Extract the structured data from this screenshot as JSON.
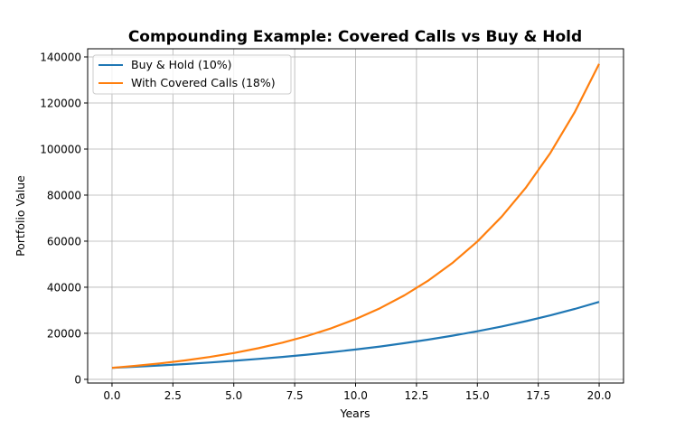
{
  "chart_data": {
    "type": "line",
    "title": "Compounding Example: Covered Calls vs Buy & Hold",
    "xlabel": "Years",
    "ylabel": "Portfolio Value",
    "xlim": [
      -1,
      21
    ],
    "ylim": [
      -1597,
      143535
    ],
    "grid": true,
    "legend_position": "top-left",
    "x_ticks": [
      "0.0",
      "2.5",
      "5.0",
      "7.5",
      "10.0",
      "12.5",
      "15.0",
      "17.5",
      "20.0"
    ],
    "x_tick_values": [
      0,
      2.5,
      5,
      7.5,
      10,
      12.5,
      15,
      17.5,
      20
    ],
    "y_ticks": [
      "0",
      "20000",
      "40000",
      "60000",
      "80000",
      "100000",
      "120000",
      "140000"
    ],
    "y_tick_values": [
      0,
      20000,
      40000,
      60000,
      80000,
      100000,
      120000,
      140000
    ],
    "x": [
      0,
      1,
      2,
      3,
      4,
      5,
      6,
      7,
      8,
      9,
      10,
      11,
      12,
      13,
      14,
      15,
      16,
      17,
      18,
      19,
      20
    ],
    "series": [
      {
        "name": "Buy & Hold (10%)",
        "color": "#1f77b4",
        "values": [
          5000,
          5500,
          6050,
          6655,
          7320.5,
          8052.55,
          8857.81,
          9743.59,
          10717.94,
          11789.74,
          12968.71,
          14265.58,
          15692.14,
          17261.36,
          18987.49,
          20886.24,
          22974.86,
          25272.35,
          27799.59,
          30579.54,
          33637.5
        ]
      },
      {
        "name": "With Covered Calls (18%)",
        "color": "#ff7f0e",
        "values": [
          5000,
          5900,
          6962,
          8215.16,
          9693.89,
          11438.79,
          13497.77,
          15927.37,
          18794.3,
          22177.27,
          26169.19,
          30879.64,
          36437.97,
          42996.8,
          50736.22,
          59868.74,
          70645.12,
          83361.25,
          98366.28,
          116072.21,
          136965.21
        ]
      }
    ]
  }
}
